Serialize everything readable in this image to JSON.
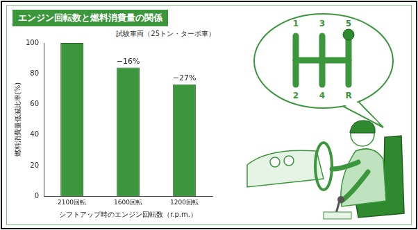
{
  "chart_data": {
    "type": "bar",
    "title": "エンジン回転数と燃料消費量の関係",
    "subtitle": "試験車両（25トン・ターボ車）",
    "x_label": "シフトアップ時のエンジン回転数（r.p.m.）",
    "y_label": "燃料消費量低減比率(%)",
    "categories": [
      "2100回転",
      "1600回転",
      "1200回転"
    ],
    "values": [
      100,
      84,
      73
    ],
    "color": "#3c963c",
    "ylim": [
      0,
      100
    ],
    "yticks": [
      0,
      20,
      40,
      60,
      80,
      100
    ],
    "grid": false,
    "annotations": [
      {
        "category": "1600回転",
        "text": "−16%"
      },
      {
        "category": "1200回転",
        "text": "−27%"
      }
    ]
  },
  "illustration": {
    "shift_pattern": {
      "top": [
        "1",
        "3",
        "5"
      ],
      "bottom": [
        "2",
        "4",
        "R"
      ]
    }
  }
}
